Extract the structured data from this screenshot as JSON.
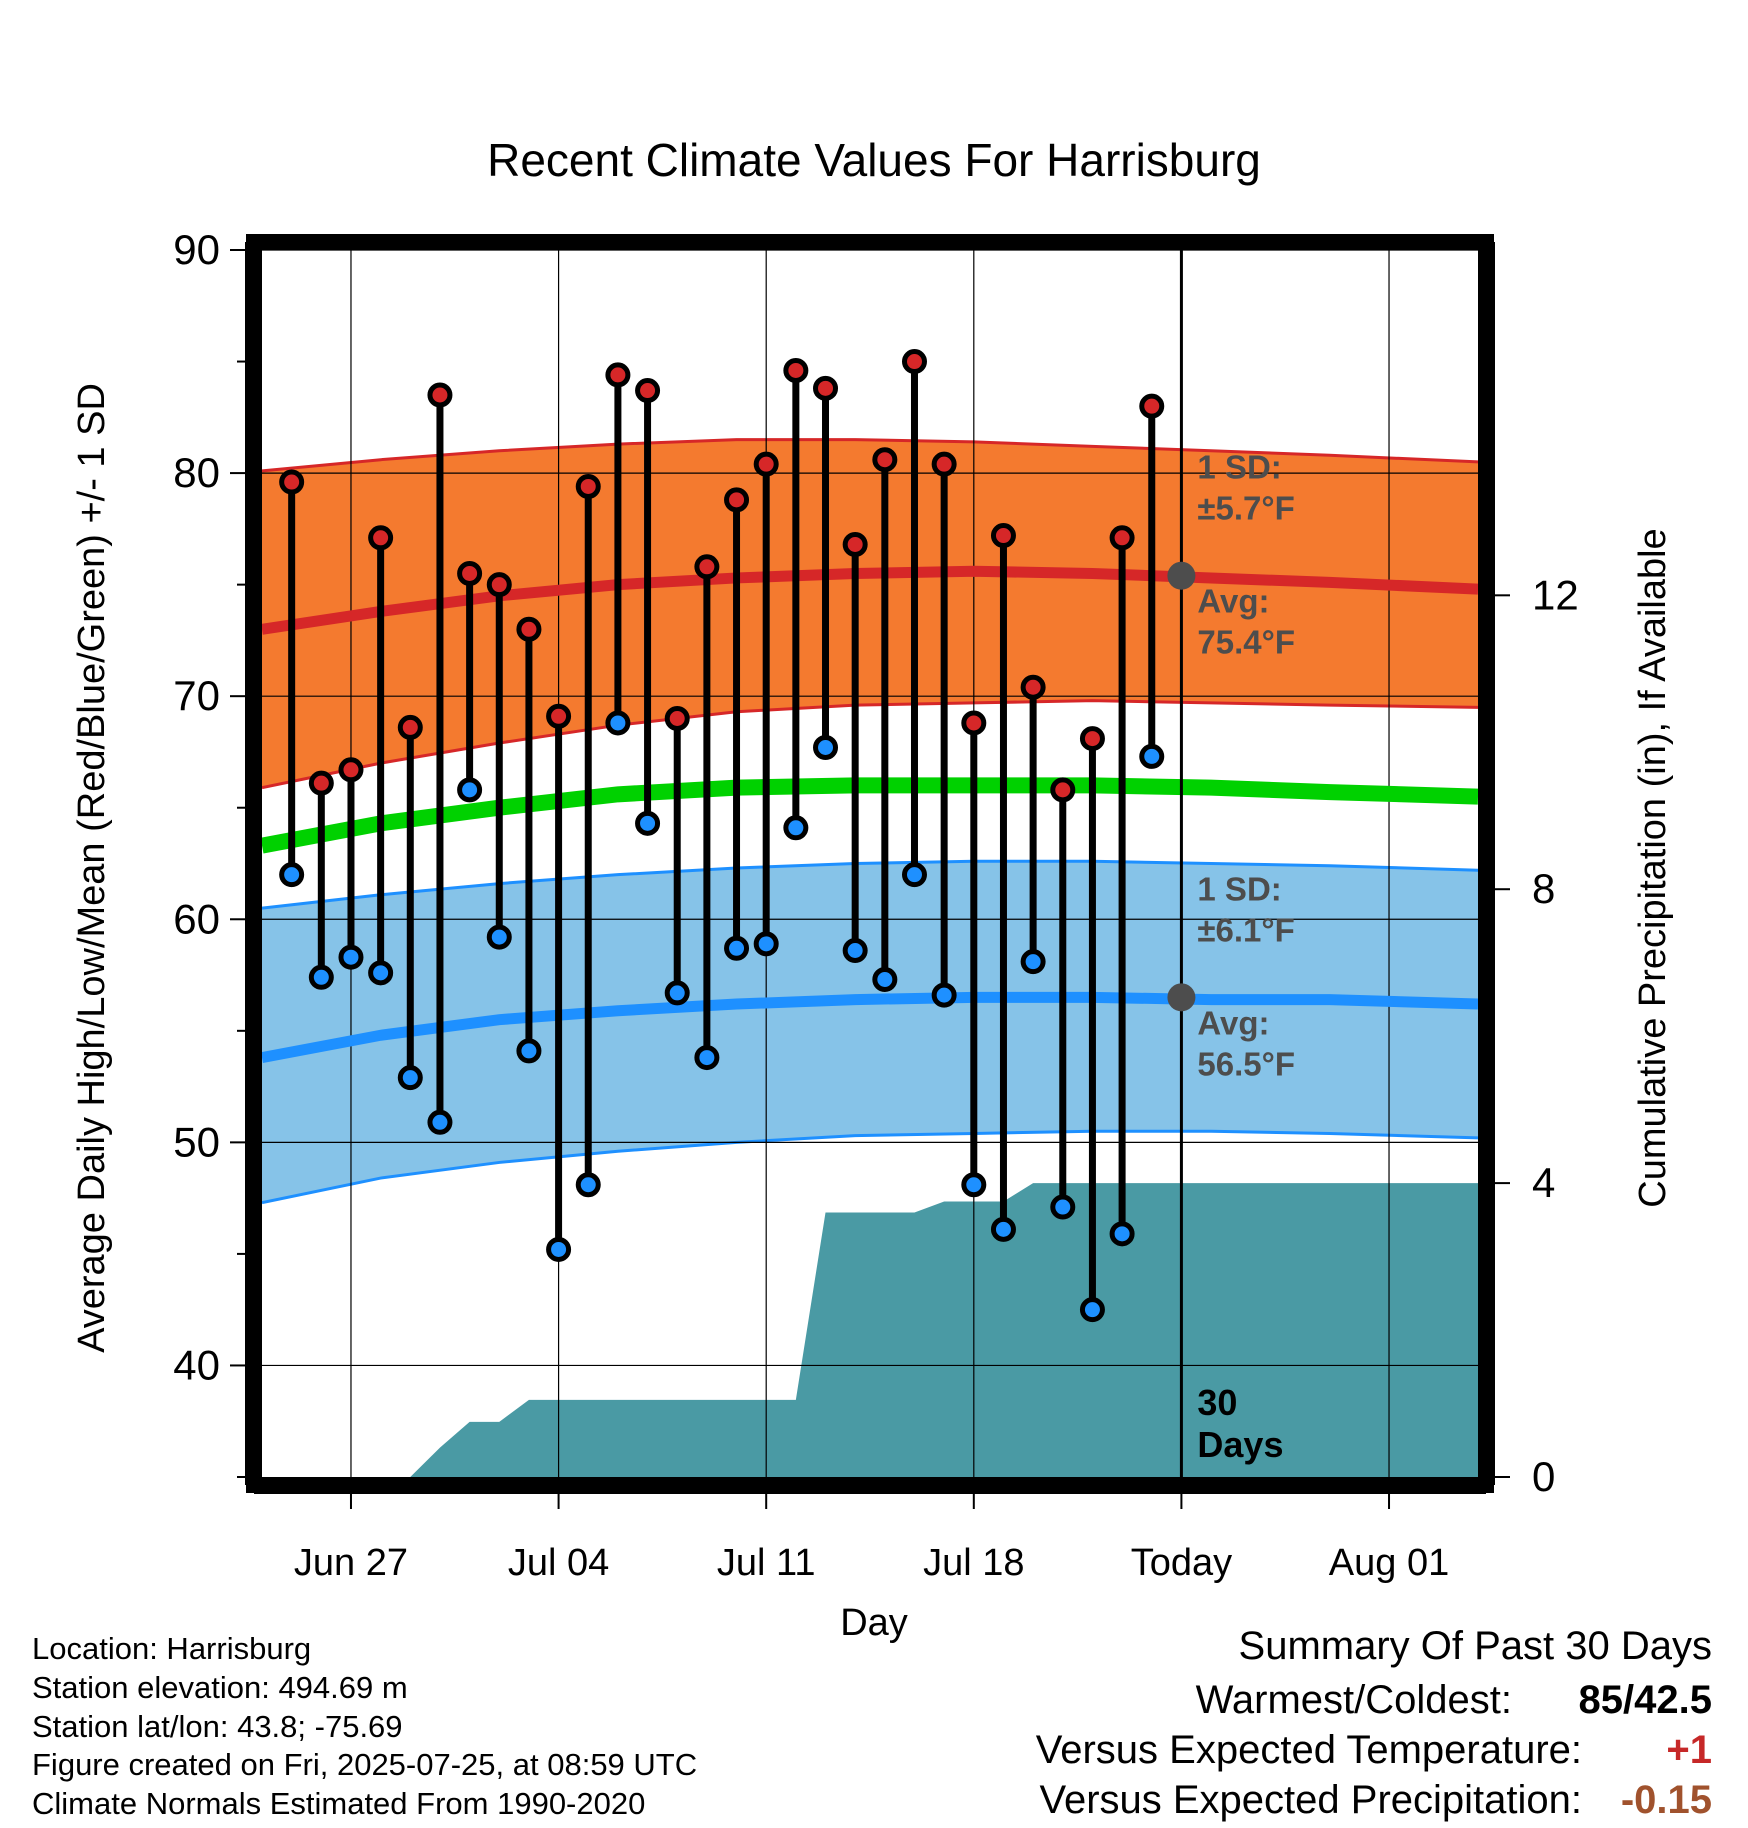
{
  "chart_data": {
    "type": "line",
    "title": "Recent Climate Values For Harrisburg",
    "xlabel": "Day",
    "ylabel": "Average Daily High/Low/Mean (Red/Blue/Green) +/- 1 SD",
    "y2label": "Cumulative Precipitation (in), If Available",
    "xlim": [
      "2025-06-24",
      "2025-08-04"
    ],
    "ylim": [
      35,
      90
    ],
    "y2lim": [
      0,
      16.7
    ],
    "x_ticks": [
      "Jun 27",
      "Jul 04",
      "Jul 11",
      "Jul 18",
      "Today",
      "Aug 01"
    ],
    "x_tick_dates": [
      "2025-06-27",
      "2025-07-04",
      "2025-07-11",
      "2025-07-18",
      "2025-07-25",
      "2025-08-01"
    ],
    "y_ticks": [
      40,
      50,
      60,
      70,
      80,
      90
    ],
    "y2_ticks": [
      0,
      4,
      8,
      12
    ],
    "grid": true,
    "daily_dates": [
      "2025-06-25",
      "2025-06-26",
      "2025-06-27",
      "2025-06-28",
      "2025-06-29",
      "2025-06-30",
      "2025-07-01",
      "2025-07-02",
      "2025-07-03",
      "2025-07-04",
      "2025-07-05",
      "2025-07-06",
      "2025-07-07",
      "2025-07-08",
      "2025-07-09",
      "2025-07-10",
      "2025-07-11",
      "2025-07-12",
      "2025-07-13",
      "2025-07-14",
      "2025-07-15",
      "2025-07-16",
      "2025-07-17",
      "2025-07-18",
      "2025-07-19",
      "2025-07-20",
      "2025-07-21",
      "2025-07-22",
      "2025-07-23",
      "2025-07-24"
    ],
    "series": [
      {
        "name": "Daily High",
        "color": "#d62728",
        "values": [
          79.6,
          66.1,
          66.7,
          77.1,
          68.6,
          83.5,
          75.5,
          75.0,
          73.0,
          69.1,
          79.4,
          84.4,
          83.7,
          69.0,
          75.8,
          78.8,
          80.4,
          84.6,
          83.8,
          76.8,
          80.6,
          85.0,
          80.4,
          68.8,
          77.2,
          70.4,
          65.8,
          68.1,
          77.1,
          83.0
        ]
      },
      {
        "name": "Daily Low",
        "color": "#1e90ff",
        "values": [
          62.0,
          57.4,
          58.3,
          57.6,
          52.9,
          50.9,
          65.8,
          59.2,
          54.1,
          45.2,
          48.1,
          68.8,
          64.3,
          56.7,
          53.8,
          58.7,
          58.9,
          64.1,
          67.7,
          58.6,
          57.3,
          62.0,
          56.6,
          48.1,
          46.1,
          58.1,
          47.1,
          42.5,
          45.9,
          67.3
        ]
      }
    ],
    "normals": {
      "dates": [
        "2025-06-24",
        "2025-06-28",
        "2025-07-02",
        "2025-07-06",
        "2025-07-10",
        "2025-07-14",
        "2025-07-18",
        "2025-07-22",
        "2025-07-26",
        "2025-07-30",
        "2025-08-04"
      ],
      "high_avg": [
        73.0,
        73.8,
        74.5,
        75.0,
        75.3,
        75.5,
        75.6,
        75.5,
        75.3,
        75.1,
        74.8
      ],
      "high_plus_1sd": [
        80.1,
        80.6,
        81.0,
        81.3,
        81.5,
        81.5,
        81.4,
        81.2,
        81.0,
        80.8,
        80.5
      ],
      "high_minus_1sd": [
        65.9,
        67.0,
        67.9,
        68.7,
        69.3,
        69.6,
        69.7,
        69.8,
        69.7,
        69.6,
        69.5
      ],
      "mean_avg": [
        63.3,
        64.3,
        65.0,
        65.6,
        65.9,
        66.0,
        66.0,
        66.0,
        65.9,
        65.7,
        65.5
      ],
      "low_avg": [
        53.8,
        54.8,
        55.5,
        55.9,
        56.2,
        56.4,
        56.5,
        56.5,
        56.4,
        56.4,
        56.2
      ],
      "low_plus_1sd": [
        60.5,
        61.1,
        61.6,
        62.0,
        62.3,
        62.5,
        62.6,
        62.6,
        62.5,
        62.4,
        62.2
      ],
      "low_minus_1sd": [
        47.3,
        48.4,
        49.1,
        49.6,
        50.0,
        50.3,
        50.4,
        50.5,
        50.5,
        50.4,
        50.2
      ]
    },
    "precip": {
      "dates": [
        "2025-06-24",
        "2025-06-29",
        "2025-06-30",
        "2025-07-01",
        "2025-07-02",
        "2025-07-03",
        "2025-07-12",
        "2025-07-13",
        "2025-07-16",
        "2025-07-17",
        "2025-07-19",
        "2025-07-20",
        "2025-08-04"
      ],
      "values": [
        0,
        0,
        0.4,
        0.75,
        0.75,
        1.05,
        1.05,
        3.6,
        3.6,
        3.75,
        3.75,
        4.0,
        4.0
      ],
      "color": "#4a9aa4"
    },
    "annotations": {
      "high_sd_line1": "1 SD:",
      "high_sd_line2": "±5.7°F",
      "high_avg_line1": "Avg:",
      "high_avg_line2": "75.4°F",
      "low_sd_line1": "1 SD:",
      "low_sd_line2": "±6.1°F",
      "low_avg_line1": "Avg:",
      "low_avg_line2": "56.5°F",
      "days_line1": "30",
      "days_line2": "Days",
      "today_high_avg": 75.4,
      "today_low_avg": 56.5
    }
  },
  "info": {
    "location": "Location: Harrisburg",
    "elevation": "Station elevation: 494.69 m",
    "latlon": "Station lat/lon: 43.8; -75.69",
    "created": "Figure created on Fri, 2025-07-25, at 08:59 UTC",
    "normals": "Climate Normals Estimated From 1990-2020"
  },
  "summary": {
    "title": "Summary Of Past 30 Days",
    "warmest_label": "Warmest/Coldest:",
    "warmest_value": "85/42.5",
    "temp_label": "Versus Expected Temperature:",
    "temp_value": "+1",
    "temp_color": "#c62828",
    "precip_label": "Versus Expected Precipitation:",
    "precip_value": "-0.15",
    "precip_color": "#a0522d"
  }
}
